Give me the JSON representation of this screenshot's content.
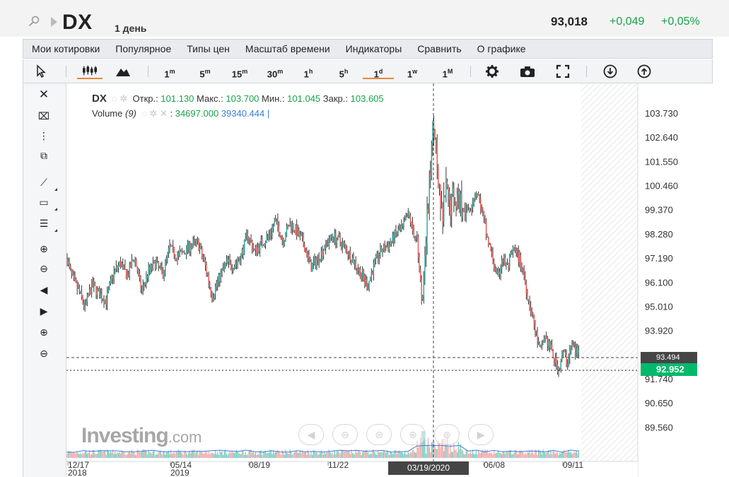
{
  "header": {
    "symbol": "DX",
    "interval": "1 день",
    "price": "93,018",
    "change": "+0,049",
    "change_pct": "+0,05%"
  },
  "menu": [
    "Мои котировки",
    "Популярное",
    "Типы цен",
    "Масштаб времени",
    "Индикаторы",
    "Сравнить",
    "О графике"
  ],
  "toolbar": {
    "timeframes": [
      {
        "base": "1",
        "sup": "m"
      },
      {
        "base": "5",
        "sup": "m"
      },
      {
        "base": "15",
        "sup": "m"
      },
      {
        "base": "30",
        "sup": "m"
      },
      {
        "base": "1",
        "sup": "h"
      },
      {
        "base": "5",
        "sup": "h"
      },
      {
        "base": "1",
        "sup": "d"
      },
      {
        "base": "1",
        "sup": "w"
      },
      {
        "base": "1",
        "sup": "M"
      }
    ],
    "active_timeframe": "1d"
  },
  "legend": {
    "symbol": "DX",
    "open_label": "Откр.:",
    "open": "101.130",
    "high_label": "Макс.:",
    "high": "103.700",
    "low_label": "Мин.:",
    "low": "101.045",
    "close_label": "Закр.:",
    "close": "103.605",
    "volume_label": "Volume",
    "volume_period": "(9)",
    "volume_value": "34697.000",
    "volume_ma": "39340.444",
    "separator": "|"
  },
  "watermark": {
    "brand": "Investing",
    "suffix": ".com"
  },
  "crosshair": {
    "date_label": "03/19/2020",
    "price_label": "93.494"
  },
  "last_price_label": "92.952",
  "colors": {
    "up": "#26a69a",
    "down": "#ef5350",
    "accent": "#00b96b",
    "brand_green": "#17a34a"
  },
  "chart_data": {
    "type": "candlestick",
    "y_ticks": [
      "103.730",
      "102.640",
      "101.550",
      "100.460",
      "99.370",
      "98.280",
      "97.190",
      "96.100",
      "95.010",
      "93.920",
      "92.830",
      "91.740",
      "90.650",
      "89.560"
    ],
    "y_range": [
      89.0,
      104.3
    ],
    "x_ticks": [
      {
        "label": "12/17",
        "sub": "2018"
      },
      {
        "label": "05/14",
        "sub": "2019"
      },
      {
        "label": "08/19",
        "sub": ""
      },
      {
        "label": "11/22",
        "sub": ""
      },
      {
        "label": "03/19",
        "sub": ""
      },
      {
        "label": "06/08",
        "sub": ""
      },
      {
        "label": "09/11",
        "sub": ""
      }
    ],
    "price_series": [
      [
        0,
        97.2
      ],
      [
        0.01,
        96.5
      ],
      [
        0.02,
        96.1
      ],
      [
        0.04,
        95.5
      ],
      [
        0.06,
        95.2
      ],
      [
        0.075,
        96.0
      ],
      [
        0.09,
        95.4
      ],
      [
        0.11,
        96.6
      ],
      [
        0.13,
        96.8
      ],
      [
        0.15,
        96.3
      ],
      [
        0.17,
        97.1
      ],
      [
        0.19,
        96.4
      ],
      [
        0.21,
        96.2
      ],
      [
        0.23,
        96.8
      ],
      [
        0.25,
        96.6
      ],
      [
        0.27,
        97.3
      ],
      [
        0.29,
        97.8
      ],
      [
        0.31,
        97.4
      ],
      [
        0.33,
        97.2
      ],
      [
        0.35,
        97.7
      ],
      [
        0.37,
        98.0
      ],
      [
        0.385,
        97.1
      ],
      [
        0.4,
        96.0
      ],
      [
        0.42,
        95.9
      ],
      [
        0.44,
        96.5
      ],
      [
        0.46,
        96.9
      ],
      [
        0.48,
        97.3
      ],
      [
        0.5,
        97.1
      ],
      [
        0.51,
        97.5
      ],
      [
        0.53,
        98.1
      ],
      [
        0.55,
        98.0
      ],
      [
        0.57,
        97.3
      ],
      [
        0.59,
        98.0
      ],
      [
        0.61,
        98.4
      ],
      [
        0.63,
        99.1
      ],
      [
        0.645,
        98.5
      ],
      [
        0.66,
        98.9
      ],
      [
        0.68,
        98.7
      ],
      [
        0.7,
        98.0
      ],
      [
        0.71,
        97.6
      ],
      [
        0.73,
        97.0
      ],
      [
        0.75,
        97.7
      ],
      [
        0.765,
        98.1
      ],
      [
        0.78,
        97.6
      ],
      [
        0.795,
        96.9
      ],
      [
        0.81,
        96.7
      ],
      [
        0.83,
        97.6
      ],
      [
        0.845,
        97.6
      ],
      [
        0.86,
        96.9
      ],
      [
        0.875,
        97.3
      ],
      [
        0.89,
        97.0
      ],
      [
        0.905,
        96.7
      ],
      [
        0.92,
        96.1
      ],
      [
        0.935,
        97.0
      ],
      [
        0.95,
        97.5
      ],
      [
        0.965,
        97.2
      ],
      [
        0.98,
        98.0
      ],
      [
        0.99,
        98.3
      ],
      [
        1.0,
        98.9
      ]
    ],
    "volume_note": "",
    "annotations": []
  }
}
